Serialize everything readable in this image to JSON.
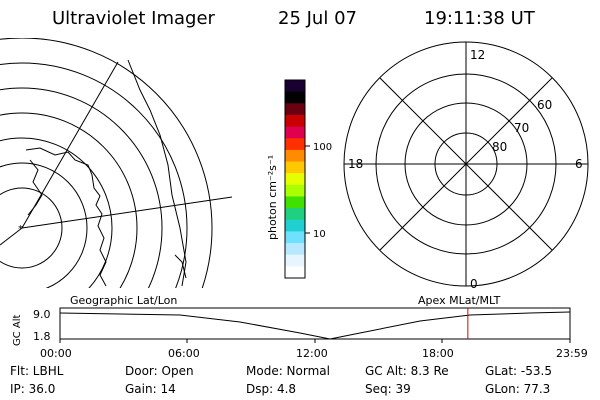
{
  "header": {
    "title": "Ultraviolet Imager",
    "date": "25 Jul 07",
    "time": "19:11:38 UT"
  },
  "colorbar": {
    "unit_label": "photon cm⁻²s⁻¹",
    "ticks": [
      "100",
      "10"
    ],
    "colors": [
      "#1a0030",
      "#000000",
      "#6a0010",
      "#c80000",
      "#e00050",
      "#ff3000",
      "#ff8c00",
      "#ffc800",
      "#e6ff00",
      "#aaff00",
      "#40e000",
      "#20d080",
      "#20d0d0",
      "#70e0ff",
      "#b8e8ff",
      "#e6f5ff",
      "#ffffff"
    ]
  },
  "polar_plot": {
    "labels": {
      "top": "12",
      "bottom": "0",
      "left": "18",
      "right": "6"
    },
    "ring_labels": [
      "60",
      "70",
      "80"
    ]
  },
  "left_map": {
    "label": "Geographic Lat/Lon"
  },
  "apex_label": "Apex MLat/MLT",
  "timeline": {
    "y_axis_label": "GC Alt",
    "y_ticks": [
      "9.0",
      "1.8"
    ],
    "x_ticks": [
      "00:00",
      "06:00",
      "12:00",
      "18:00",
      "23:59"
    ],
    "current_time_fraction": 0.7997,
    "marker_color": "#e00000"
  },
  "status": {
    "filter": "Flt: LBHL",
    "ip": "IP: 36.0",
    "door": "Door: Open",
    "gain": "Gain: 14",
    "mode": "Mode: Normal",
    "dsp": "Dsp:    4.8",
    "gc_alt": "GC Alt: 8.3 Re",
    "seq": "Seq: 39",
    "glat": "GLat:  -53.5",
    "glon": "GLon:  77.3"
  }
}
